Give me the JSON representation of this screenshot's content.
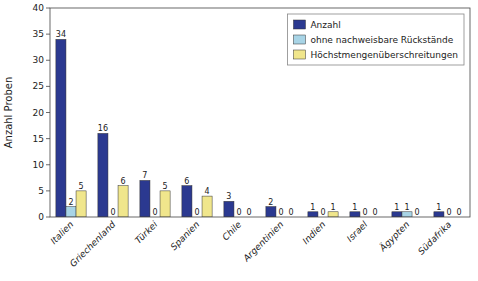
{
  "chart_data": {
    "type": "bar",
    "categories": [
      "Italien",
      "Griechenland",
      "Türkei",
      "Spanien",
      "Chile",
      "Argentinien",
      "Indien",
      "Israel",
      "Ägypten",
      "Südafrika"
    ],
    "series": [
      {
        "name": "Anzahl",
        "color": "#2B3990",
        "values": [
          34,
          16,
          7,
          6,
          3,
          2,
          1,
          1,
          1,
          1
        ]
      },
      {
        "name": "ohne nachweisbare Rückstände",
        "color": "#A8D4E6",
        "values": [
          2,
          0,
          0,
          0,
          0,
          0,
          0,
          0,
          1,
          0
        ]
      },
      {
        "name": "Höchstmengenüberschreitungen",
        "color": "#F0E68C",
        "values": [
          5,
          6,
          5,
          4,
          0,
          0,
          1,
          0,
          0,
          0
        ]
      }
    ],
    "ylabel": "Anzahl Proben",
    "ylim": [
      0,
      40
    ],
    "yticks": [
      0,
      5,
      10,
      15,
      20,
      25,
      30,
      35,
      40
    ],
    "legend": "upper right",
    "data_labels": true,
    "grid": false
  }
}
